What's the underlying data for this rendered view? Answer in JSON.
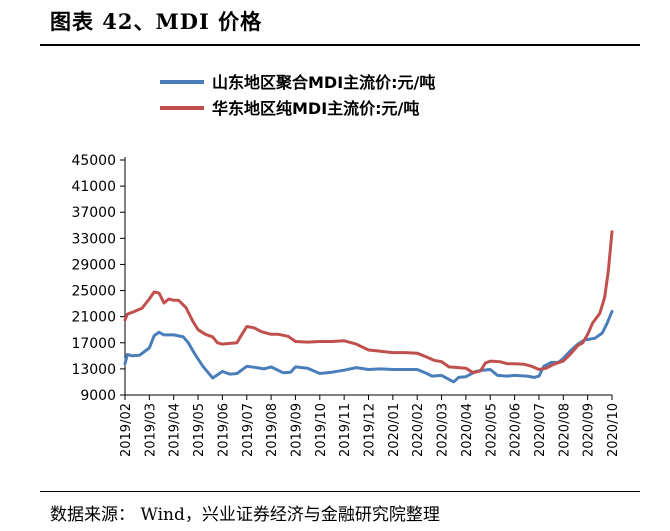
{
  "header": {
    "title": "图表 42、MDI 价格"
  },
  "footer": {
    "source": "数据来源： Wind，兴业证券经济与金融研究院整理"
  },
  "chart_data": {
    "type": "line",
    "title": "",
    "xlabel": "",
    "ylabel": "",
    "ylim": [
      9000,
      45000
    ],
    "yticks": [
      9000,
      13000,
      17000,
      21000,
      25000,
      29000,
      33000,
      37000,
      41000,
      45000
    ],
    "ytick_labels": [
      "9000",
      "13000",
      "17000",
      "21000",
      "25000",
      "29000",
      "33000",
      "37000",
      "41000",
      "45000"
    ],
    "xticks": [
      "2019/02",
      "2019/03",
      "2019/04",
      "2019/05",
      "2019/06",
      "2019/07",
      "2019/08",
      "2019/09",
      "2019/10",
      "2019/11",
      "2019/12",
      "2020/01",
      "2020/02",
      "2020/03",
      "2020/04",
      "2020/05",
      "2020/06",
      "2020/07",
      "2020/08",
      "2020/09",
      "2020/10"
    ],
    "grid": false,
    "legend_position": "top",
    "series": [
      {
        "name": "山东地区聚合MDI主流价:元/吨",
        "color": "#4a7ebb",
        "points": [
          [
            "2019/02",
            13800
          ],
          [
            "2019/02.1",
            15200
          ],
          [
            "2019/02.3",
            15000
          ],
          [
            "2019/02.6",
            15100
          ],
          [
            "2019/03",
            16200
          ],
          [
            "2019/03.2",
            18100
          ],
          [
            "2019/03.4",
            18600
          ],
          [
            "2019/03.6",
            18200
          ],
          [
            "2019/04",
            18200
          ],
          [
            "2019/04.4",
            17900
          ],
          [
            "2019/04.6",
            17000
          ],
          [
            "2019/04.8",
            15700
          ],
          [
            "2019/05",
            14500
          ],
          [
            "2019/05.2",
            13400
          ],
          [
            "2019/05.4",
            12500
          ],
          [
            "2019/05.6",
            11600
          ],
          [
            "2019/05.8",
            12100
          ],
          [
            "2019/06",
            12600
          ],
          [
            "2019/06.3",
            12200
          ],
          [
            "2019/06.6",
            12300
          ],
          [
            "2019/07",
            13400
          ],
          [
            "2019/07.4",
            13200
          ],
          [
            "2019/07.7",
            13000
          ],
          [
            "2019/08",
            13300
          ],
          [
            "2019/08.5",
            12400
          ],
          [
            "2019/08.8",
            12500
          ],
          [
            "2019/09",
            13300
          ],
          [
            "2019/09.5",
            13100
          ],
          [
            "2019/10",
            12300
          ],
          [
            "2019/10.5",
            12500
          ],
          [
            "2019/11",
            12800
          ],
          [
            "2019/11.5",
            13200
          ],
          [
            "2019/12",
            12900
          ],
          [
            "2019/12.5",
            13000
          ],
          [
            "2020/01",
            12900
          ],
          [
            "2020/01.5",
            12900
          ],
          [
            "2020/02",
            12900
          ],
          [
            "2020/02.4",
            12300
          ],
          [
            "2020/02.6",
            11900
          ],
          [
            "2020/03",
            12000
          ],
          [
            "2020/03.5",
            11000
          ],
          [
            "2020/03.7",
            11700
          ],
          [
            "2020/04",
            11800
          ],
          [
            "2020/04.4",
            12600
          ],
          [
            "2020/04.7",
            12800
          ],
          [
            "2020/05",
            12900
          ],
          [
            "2020/05.3",
            12000
          ],
          [
            "2020/05.7",
            11900
          ],
          [
            "2020/06",
            12000
          ],
          [
            "2020/06.5",
            11900
          ],
          [
            "2020/06.8",
            11700
          ],
          [
            "2020/07",
            11900
          ],
          [
            "2020/07.2",
            13400
          ],
          [
            "2020/07.5",
            14000
          ],
          [
            "2020/07.8",
            14000
          ],
          [
            "2020/08",
            14600
          ],
          [
            "2020/08.3",
            15800
          ],
          [
            "2020/08.6",
            16800
          ],
          [
            "2020/08.9",
            17500
          ],
          [
            "2020/09",
            17500
          ],
          [
            "2020/09.3",
            17700
          ],
          [
            "2020/09.6",
            18500
          ],
          [
            "2020/09.8",
            20000
          ],
          [
            "2020/10",
            21800
          ]
        ]
      },
      {
        "name": "华东地区纯MDI主流价:元/吨",
        "color": "#c0504d",
        "points": [
          [
            "2019/02",
            20500
          ],
          [
            "2019/02.1",
            21400
          ],
          [
            "2019/02.4",
            21800
          ],
          [
            "2019/02.7",
            22300
          ],
          [
            "2019/03",
            23700
          ],
          [
            "2019/03.2",
            24800
          ],
          [
            "2019/03.4",
            24600
          ],
          [
            "2019/03.6",
            23100
          ],
          [
            "2019/03.8",
            23700
          ],
          [
            "2019/04",
            23500
          ],
          [
            "2019/04.2",
            23500
          ],
          [
            "2019/04.5",
            22400
          ],
          [
            "2019/04.8",
            20200
          ],
          [
            "2019/05",
            19000
          ],
          [
            "2019/05.3",
            18300
          ],
          [
            "2019/05.6",
            17900
          ],
          [
            "2019/05.8",
            17000
          ],
          [
            "2019/06",
            16800
          ],
          [
            "2019/06.3",
            16900
          ],
          [
            "2019/06.6",
            17000
          ],
          [
            "2019/06.8",
            18300
          ],
          [
            "2019/07",
            19500
          ],
          [
            "2019/07.3",
            19300
          ],
          [
            "2019/07.6",
            18700
          ],
          [
            "2019/08",
            18300
          ],
          [
            "2019/08.3",
            18300
          ],
          [
            "2019/08.7",
            18000
          ],
          [
            "2019/09",
            17200
          ],
          [
            "2019/09.5",
            17100
          ],
          [
            "2019/10",
            17200
          ],
          [
            "2019/10.5",
            17200
          ],
          [
            "2019/11",
            17300
          ],
          [
            "2019/11.5",
            16800
          ],
          [
            "2019/12",
            15900
          ],
          [
            "2019/12.5",
            15700
          ],
          [
            "2020/01",
            15500
          ],
          [
            "2020/01.5",
            15500
          ],
          [
            "2020/02",
            15400
          ],
          [
            "2020/02.4",
            14800
          ],
          [
            "2020/02.7",
            14300
          ],
          [
            "2020/03",
            14100
          ],
          [
            "2020/03.3",
            13300
          ],
          [
            "2020/03.7",
            13200
          ],
          [
            "2020/04",
            13100
          ],
          [
            "2020/04.3",
            12400
          ],
          [
            "2020/04.6",
            12700
          ],
          [
            "2020/04.8",
            13900
          ],
          [
            "2020/05",
            14200
          ],
          [
            "2020/05.4",
            14100
          ],
          [
            "2020/05.7",
            13800
          ],
          [
            "2020/06",
            13800
          ],
          [
            "2020/06.4",
            13700
          ],
          [
            "2020/06.7",
            13400
          ],
          [
            "2020/07",
            12900
          ],
          [
            "2020/07.3",
            13100
          ],
          [
            "2020/07.6",
            13700
          ],
          [
            "2020/08",
            14200
          ],
          [
            "2020/08.3",
            15300
          ],
          [
            "2020/08.6",
            16600
          ],
          [
            "2020/08.8",
            17000
          ],
          [
            "2020/09",
            18300
          ],
          [
            "2020/09.2",
            20000
          ],
          [
            "2020/09.5",
            21500
          ],
          [
            "2020/09.7",
            24000
          ],
          [
            "2020/09.85",
            28000
          ],
          [
            "2020/10",
            34000
          ]
        ]
      }
    ]
  }
}
